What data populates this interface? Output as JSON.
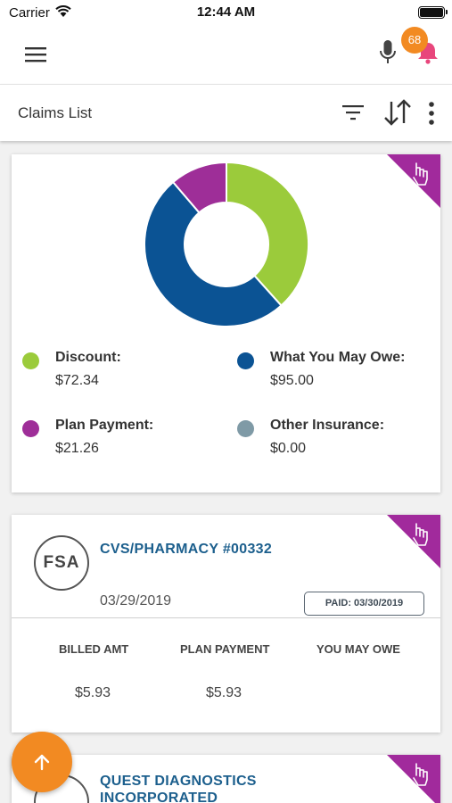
{
  "status_bar": {
    "carrier": "Carrier",
    "time": "12:44 AM"
  },
  "app_bar": {
    "notification_count": "68"
  },
  "page": {
    "title": "Claims List"
  },
  "colors": {
    "discount": "#9bcb3b",
    "what_you_may_owe": "#0b5394",
    "plan_payment": "#9e2e98",
    "other_insurance": "#7f9aa6",
    "accent": "#f28a22",
    "corner_tag": "#a12a9c"
  },
  "chart_data": {
    "type": "pie",
    "categories": [
      "Discount",
      "What You May Owe",
      "Plan Payment",
      "Other Insurance"
    ],
    "values": [
      72.34,
      95.0,
      21.26,
      0.0
    ]
  },
  "summary": {
    "legend": [
      {
        "label": "Discount:",
        "value": "$72.34"
      },
      {
        "label": "What You May Owe:",
        "value": "$95.00"
      },
      {
        "label": "Plan Payment:",
        "value": "$21.26"
      },
      {
        "label": "Other Insurance:",
        "value": "$0.00"
      }
    ]
  },
  "claims": [
    {
      "logo": "FSA",
      "provider": "CVS/PHARMACY #00332",
      "date": "03/29/2019",
      "status": "PAID: 03/30/2019",
      "columns": [
        "BILLED AMT",
        "PLAN PAYMENT",
        "YOU MAY OWE"
      ],
      "values": [
        "$5.93",
        "$5.93",
        ""
      ]
    },
    {
      "provider_line1": "QUEST DIAGNOSTICS",
      "provider_line2": "INCORPORATED"
    }
  ]
}
